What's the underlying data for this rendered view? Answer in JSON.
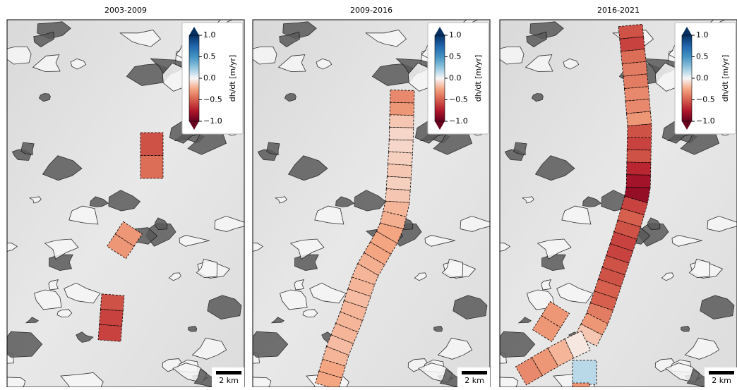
{
  "panels": [
    {
      "title": "2003-2009",
      "values": [
        -0.55,
        -0.45,
        -0.3,
        -0.3,
        -0.55,
        -0.6,
        -0.6
      ]
    },
    {
      "title": "2009-2016",
      "values": [
        -0.35,
        -0.3,
        -0.15,
        -0.1,
        -0.1,
        -0.12,
        -0.15,
        -0.12,
        -0.15,
        -0.2,
        -0.22,
        -0.25,
        -0.25,
        -0.25,
        -0.22,
        -0.2,
        -0.2,
        -0.18,
        -0.2,
        -0.2,
        -0.2,
        -0.18,
        -0.2,
        -0.25,
        -0.25
      ]
    },
    {
      "title": "2016-2021",
      "values": [
        -0.55,
        -0.6,
        -0.45,
        -0.4,
        -0.4,
        -0.35,
        -0.35,
        -0.3,
        -0.55,
        -0.6,
        -0.55,
        -0.7,
        -0.8,
        -0.85,
        -0.6,
        -0.5,
        -0.55,
        -0.6,
        -0.6,
        -0.55,
        -0.55,
        -0.5,
        -0.5,
        -0.4,
        -0.3,
        -0.15,
        -0.05,
        -0.2,
        -0.3,
        -0.35,
        -0.3,
        -0.3,
        0.15,
        -0.3
      ]
    }
  ],
  "colorbar": {
    "label": "dh/dt [m/yr]",
    "lim": [
      -1,
      1
    ],
    "ticks": [
      {
        "value": 1,
        "label": "1.0"
      },
      {
        "value": 0.5,
        "label": "0.5"
      },
      {
        "value": 0,
        "label": "0.0"
      },
      {
        "value": -0.5,
        "label": "−0.5"
      },
      {
        "value": -1,
        "label": "−1.0"
      }
    ]
  },
  "scale_bar": "2 km"
}
